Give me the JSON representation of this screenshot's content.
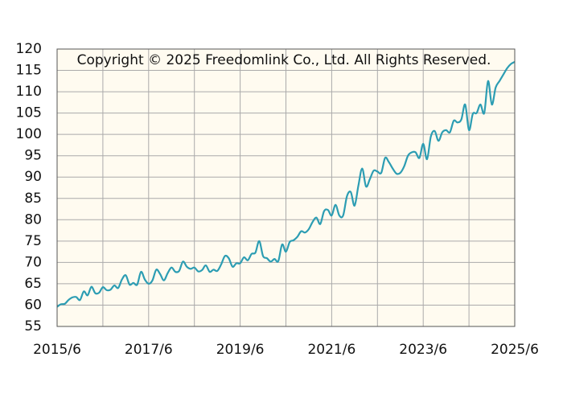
{
  "chart_data": {
    "type": "line",
    "annotation": "Copyright © 2025 Freedomlink Co., Ltd. All Rights Reserved.",
    "x": [
      "2015/6",
      "2015/7",
      "2015/8",
      "2015/9",
      "2015/10",
      "2015/11",
      "2015/12",
      "2016/1",
      "2016/2",
      "2016/3",
      "2016/4",
      "2016/5",
      "2016/6",
      "2016/7",
      "2016/8",
      "2016/9",
      "2016/10",
      "2016/11",
      "2016/12",
      "2017/1",
      "2017/2",
      "2017/3",
      "2017/4",
      "2017/5",
      "2017/6",
      "2017/7",
      "2017/8",
      "2017/9",
      "2017/10",
      "2017/11",
      "2017/12",
      "2018/1",
      "2018/2",
      "2018/3",
      "2018/4",
      "2018/5",
      "2018/6",
      "2018/7",
      "2018/8",
      "2018/9",
      "2018/10",
      "2018/11",
      "2018/12",
      "2019/1",
      "2019/2",
      "2019/3",
      "2019/4",
      "2019/5",
      "2019/6",
      "2019/7",
      "2019/8",
      "2019/9",
      "2019/10",
      "2019/11",
      "2019/12",
      "2020/1",
      "2020/2",
      "2020/3",
      "2020/4",
      "2020/5",
      "2020/6",
      "2020/7",
      "2020/8",
      "2020/9",
      "2020/10",
      "2020/11",
      "2020/12",
      "2021/1",
      "2021/2",
      "2021/3",
      "2021/4",
      "2021/5",
      "2021/6",
      "2021/7",
      "2021/8",
      "2021/9",
      "2021/10",
      "2021/11",
      "2021/12",
      "2022/1",
      "2022/2",
      "2022/3",
      "2022/4",
      "2022/5",
      "2022/6",
      "2022/7",
      "2022/8",
      "2022/9",
      "2022/10",
      "2022/11",
      "2022/12",
      "2023/1",
      "2023/2",
      "2023/3",
      "2023/4",
      "2023/5",
      "2023/6",
      "2023/7",
      "2023/8",
      "2023/9",
      "2023/10",
      "2023/11",
      "2023/12",
      "2024/1",
      "2024/2",
      "2024/3",
      "2024/4",
      "2024/5",
      "2024/6",
      "2024/7",
      "2024/8",
      "2024/9",
      "2024/10",
      "2024/11",
      "2024/12",
      "2025/1",
      "2025/2",
      "2025/3",
      "2025/4",
      "2025/5",
      "2025/6"
    ],
    "series": [
      {
        "color": "#2c9db3",
        "values": [
          59.6,
          60.2,
          60.3,
          61.2,
          61.8,
          61.9,
          61.2,
          63.2,
          62.3,
          64.3,
          62.8,
          62.9,
          64.2,
          63.5,
          63.6,
          64.6,
          64.0,
          66.0,
          67.0,
          64.8,
          65.2,
          64.8,
          67.8,
          66.0,
          65.0,
          65.8,
          68.3,
          67.3,
          65.8,
          67.5,
          68.8,
          67.8,
          68.0,
          70.2,
          69.0,
          68.5,
          68.8,
          67.9,
          68.2,
          69.3,
          67.8,
          68.3,
          68.0,
          69.5,
          71.5,
          71.0,
          69.0,
          69.8,
          69.8,
          71.2,
          70.5,
          72.0,
          72.3,
          75.0,
          71.5,
          71.0,
          70.2,
          70.8,
          70.3,
          74.2,
          72.5,
          74.8,
          75.2,
          76.0,
          77.3,
          77.0,
          77.8,
          79.5,
          80.5,
          79.0,
          82.0,
          82.3,
          81.0,
          83.5,
          81.0,
          81.0,
          85.5,
          86.5,
          83.3,
          88.0,
          92.0,
          87.8,
          89.5,
          91.5,
          91.3,
          91.0,
          94.5,
          93.5,
          92.0,
          90.8,
          91.0,
          92.5,
          95.0,
          95.8,
          95.8,
          94.5,
          97.8,
          94.2,
          99.5,
          100.8,
          98.5,
          100.5,
          101.0,
          100.5,
          103.2,
          102.8,
          103.5,
          107.0,
          101.0,
          104.8,
          105.0,
          107.0,
          105.0,
          112.5,
          107.0,
          111.0,
          112.5,
          114.0,
          115.5,
          116.5,
          117.0
        ]
      }
    ],
    "xticks": [
      "2015/6",
      "2017/6",
      "2019/6",
      "2021/6",
      "2023/6",
      "2025/6"
    ],
    "ylim": [
      55,
      120
    ],
    "yticks": [
      55,
      60,
      65,
      70,
      75,
      80,
      85,
      90,
      95,
      100,
      105,
      110,
      115,
      120
    ],
    "grid": true
  }
}
